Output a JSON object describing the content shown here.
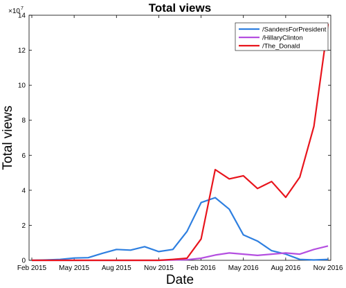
{
  "chart_data": {
    "type": "line",
    "title": "Total views",
    "xlabel": "Date",
    "ylabel": "Total views",
    "y_exponent_label": "×10",
    "y_exponent": "7",
    "x_tick_labels": [
      "Feb 2015",
      "May 2015",
      "Aug 2015",
      "Nov 2015",
      "Feb 2016",
      "May 2016",
      "Aug 2016",
      "Nov 2016"
    ],
    "y_tick_labels": [
      "0",
      "2",
      "4",
      "6",
      "8",
      "10",
      "12",
      "14"
    ],
    "x_ticks": [
      "2015-02",
      "2015-05",
      "2015-08",
      "2015-11",
      "2016-02",
      "2016-05",
      "2016-08",
      "2016-11"
    ],
    "x": [
      "2015-02",
      "2015-03",
      "2015-04",
      "2015-05",
      "2015-06",
      "2015-07",
      "2015-08",
      "2015-09",
      "2015-10",
      "2015-11",
      "2015-12",
      "2016-01",
      "2016-02",
      "2016-03",
      "2016-04",
      "2016-05",
      "2016-06",
      "2016-07",
      "2016-08",
      "2016-09",
      "2016-10",
      "2016-11"
    ],
    "xlim": [
      "2015-02",
      "2016-11"
    ],
    "ylim": [
      0,
      14
    ],
    "y_unit_multiplier": 10000000,
    "grid": false,
    "legend_position": "top-right",
    "series": [
      {
        "name": "/SandersForPresident",
        "color": "#2e7fe0",
        "values": [
          0.0,
          0.02,
          0.05,
          0.13,
          0.15,
          0.4,
          0.62,
          0.58,
          0.78,
          0.5,
          0.62,
          1.65,
          3.3,
          3.58,
          2.92,
          1.45,
          1.1,
          0.55,
          0.35,
          0.05,
          0.02,
          0.05
        ]
      },
      {
        "name": "/HillaryClinton",
        "color": "#b44fe0",
        "values": [
          0.0,
          0.0,
          0.0,
          0.0,
          0.0,
          0.0,
          0.0,
          0.0,
          0.0,
          0.0,
          0.02,
          0.03,
          0.12,
          0.3,
          0.42,
          0.35,
          0.28,
          0.35,
          0.42,
          0.35,
          0.62,
          0.82
        ]
      },
      {
        "name": "/The_Donald",
        "color": "#e8141c",
        "values": [
          0.0,
          0.0,
          0.0,
          0.0,
          0.0,
          0.0,
          0.0,
          0.0,
          0.0,
          0.0,
          0.05,
          0.12,
          1.22,
          5.18,
          4.65,
          4.83,
          4.1,
          4.5,
          3.6,
          4.75,
          7.65,
          13.5
        ]
      }
    ]
  }
}
